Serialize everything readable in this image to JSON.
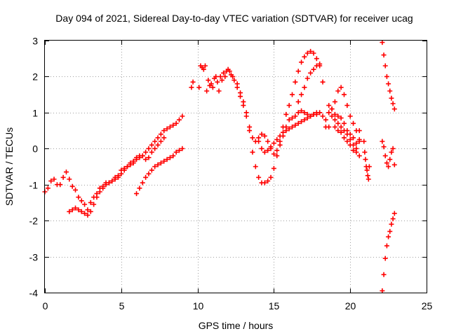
{
  "chart_data": {
    "type": "scatter",
    "title": "Day 094 of 2021, Sidereal Day-to-day VTEC variation (SDTVAR) for receiver ucag",
    "xlabel": "GPS time / hours",
    "ylabel": "SDTVAR / TECUs",
    "xlim": [
      0,
      25
    ],
    "ylim": [
      -4,
      3
    ],
    "x_ticks": [
      "0",
      "5",
      "10",
      "15",
      "20",
      "25"
    ],
    "y_ticks": [
      "-4",
      "-3",
      "-2",
      "-1",
      "0",
      "1",
      "2",
      "3"
    ],
    "grid": true,
    "legend": "none",
    "marker": "+",
    "color": "#ff0000",
    "series": [
      {
        "x": [
          0.0,
          0.2,
          0.4,
          0.6,
          0.8,
          1.0,
          1.2,
          1.4,
          1.6,
          1.8,
          2.0,
          2.2,
          2.4,
          2.6,
          2.8,
          3.0,
          3.2,
          3.4,
          3.6,
          3.8,
          4.0,
          4.2,
          4.4,
          4.6,
          4.8,
          5.0,
          5.2,
          5.4,
          5.6,
          5.8,
          6.0,
          6.2,
          6.4,
          6.6,
          6.8,
          7.0,
          7.2,
          7.4,
          7.6,
          7.8,
          8.0,
          8.2,
          8.4,
          8.6,
          8.8,
          9.0
        ],
        "y": [
          -1.2,
          -1.1,
          -0.9,
          -0.85,
          -1.0,
          -1.0,
          -0.8,
          -0.65,
          -0.85,
          -1.05,
          -1.15,
          -1.35,
          -1.45,
          -1.55,
          -1.7,
          -1.5,
          -1.35,
          -1.25,
          -1.1,
          -1.05,
          -0.95,
          -0.95,
          -0.9,
          -0.8,
          -0.75,
          -0.6,
          -0.55,
          -0.5,
          -0.45,
          -0.4,
          -0.3,
          -0.25,
          -0.2,
          -0.1,
          0.0,
          0.1,
          0.2,
          0.3,
          0.4,
          0.5,
          0.55,
          0.6,
          0.65,
          0.7,
          0.8,
          0.9
        ]
      },
      {
        "x": [
          1.6,
          1.8,
          2.0,
          2.2,
          2.4,
          2.6,
          2.8,
          3.0,
          3.2,
          3.4,
          3.6,
          3.8,
          4.0,
          4.2,
          4.4,
          4.6,
          4.8,
          5.0,
          5.2,
          5.4,
          5.6,
          5.8,
          6.0,
          6.2,
          6.4,
          6.6,
          6.8,
          7.0,
          7.2,
          7.4,
          7.6,
          7.8
        ],
        "y": [
          -1.75,
          -1.7,
          -1.65,
          -1.7,
          -1.75,
          -1.8,
          -1.85,
          -1.75,
          -1.55,
          -1.35,
          -1.2,
          -1.1,
          -1.0,
          -0.95,
          -0.9,
          -0.85,
          -0.8,
          -0.7,
          -0.6,
          -0.5,
          -0.4,
          -0.35,
          -0.25,
          -0.2,
          -0.2,
          -0.3,
          -0.25,
          -0.1,
          0.0,
          0.1,
          0.2,
          0.3
        ]
      },
      {
        "x": [
          6.0,
          6.2,
          6.4,
          6.6,
          6.8,
          7.0,
          7.2,
          7.4,
          7.6,
          7.8,
          8.0,
          8.2,
          8.4,
          8.6,
          8.8,
          9.0
        ],
        "y": [
          -1.25,
          -1.1,
          -0.95,
          -0.8,
          -0.7,
          -0.6,
          -0.5,
          -0.45,
          -0.4,
          -0.35,
          -0.3,
          -0.25,
          -0.2,
          -0.1,
          -0.05,
          0.0
        ]
      },
      {
        "x": [
          9.6,
          9.7,
          10.1,
          10.2,
          10.3,
          10.4,
          10.5,
          10.6,
          10.7,
          10.8,
          10.9,
          11.0,
          11.1,
          11.2,
          11.3,
          11.4,
          11.5,
          11.6,
          11.7,
          11.8,
          11.9,
          12.0,
          12.1,
          12.2,
          12.3
        ],
        "y": [
          1.7,
          1.85,
          1.7,
          2.3,
          2.25,
          2.2,
          2.3,
          1.6,
          1.9,
          1.75,
          1.8,
          1.7,
          1.95,
          2.0,
          1.85,
          1.6,
          2.0,
          1.9,
          2.1,
          2.0,
          2.15,
          2.2,
          2.15,
          2.05,
          2.0
        ]
      },
      {
        "x": [
          12.4,
          12.6,
          12.8,
          13.0,
          13.2,
          13.4,
          13.6,
          13.8,
          14.0,
          14.2,
          14.4,
          14.6,
          14.8,
          15.0,
          15.2,
          15.4,
          15.6,
          15.8,
          16.0,
          16.2,
          16.4,
          16.6,
          16.8,
          17.0,
          17.2,
          17.4,
          17.6,
          17.8,
          18.0,
          18.2
        ],
        "y": [
          1.9,
          1.7,
          1.45,
          1.2,
          0.9,
          0.5,
          -0.1,
          -0.5,
          -0.8,
          -0.95,
          -0.95,
          -0.9,
          -0.8,
          -0.55,
          -0.2,
          0.2,
          0.6,
          0.95,
          1.2,
          1.5,
          1.85,
          2.15,
          2.4,
          2.55,
          2.65,
          2.7,
          2.65,
          2.5,
          2.3,
          1.85
        ]
      },
      {
        "x": [
          12.6,
          12.8,
          13.0,
          13.2,
          13.4,
          13.6,
          13.8,
          14.0,
          14.2,
          14.4,
          14.6,
          14.8,
          15.0,
          15.2,
          15.4,
          15.6,
          15.8,
          16.0,
          16.2,
          16.4,
          16.6,
          16.8,
          17.0,
          17.2,
          17.4,
          17.6,
          17.8,
          18.0,
          18.2,
          18.4,
          18.6
        ],
        "y": [
          1.8,
          1.55,
          1.3,
          1.0,
          0.6,
          0.3,
          0.2,
          0.3,
          0.4,
          0.35,
          0.2,
          0.0,
          -0.15,
          -0.05,
          0.1,
          0.35,
          0.6,
          0.8,
          0.85,
          0.9,
          1.0,
          1.05,
          1.0,
          0.95,
          0.9,
          0.95,
          1.0,
          1.0,
          0.9,
          0.6,
          0.6
        ]
      },
      {
        "x": [
          14.0,
          14.2,
          14.4,
          14.6,
          14.8,
          15.0,
          15.2,
          15.4,
          15.6,
          15.8,
          16.0,
          16.2,
          16.4,
          16.6,
          16.8,
          17.0,
          17.2,
          17.4,
          17.6,
          17.8,
          18.0
        ],
        "y": [
          0.2,
          0.0,
          -0.1,
          -0.05,
          0.05,
          0.15,
          0.25,
          0.35,
          0.45,
          0.5,
          0.55,
          0.6,
          0.65,
          0.7,
          0.75,
          0.8,
          0.85,
          0.9,
          0.95,
          0.95,
          1.0
        ]
      },
      {
        "x": [
          16.6,
          16.8,
          17.0,
          17.2,
          17.4,
          17.6,
          17.8,
          18.0
        ],
        "y": [
          1.3,
          1.5,
          1.7,
          1.95,
          2.1,
          2.2,
          2.3,
          2.35
        ]
      },
      {
        "x": [
          18.4,
          18.6,
          18.8,
          19.0,
          19.2,
          19.4,
          19.6,
          19.8,
          20.0,
          20.2,
          20.4,
          20.6
        ],
        "y": [
          0.8,
          1.0,
          1.1,
          1.3,
          1.6,
          1.7,
          1.5,
          1.2,
          0.9,
          0.7,
          0.5,
          0.2
        ]
      },
      {
        "x": [
          18.6,
          18.8,
          19.0,
          19.2,
          19.4,
          19.6,
          19.8,
          20.0,
          20.2,
          20.4,
          20.6
        ],
        "y": [
          1.2,
          1.1,
          0.95,
          0.9,
          0.85,
          0.7,
          0.5,
          0.4,
          0.3,
          0.0,
          0.5
        ]
      },
      {
        "x": [
          18.6,
          18.8,
          19.0,
          19.2,
          19.4,
          19.6,
          19.8,
          20.0,
          20.2,
          20.4,
          20.6
        ],
        "y": [
          1.0,
          0.9,
          0.8,
          0.7,
          0.6,
          0.5,
          0.4,
          0.25,
          0.1,
          0.15,
          0.25
        ]
      },
      {
        "x": [
          19.0,
          19.2,
          19.4,
          19.6,
          19.8,
          20.0,
          20.2,
          20.4,
          20.6
        ],
        "y": [
          0.6,
          0.5,
          0.45,
          0.3,
          0.2,
          0.1,
          -0.05,
          -0.1,
          -0.2
        ]
      },
      {
        "x": [
          20.9,
          20.95,
          21.0,
          21.05,
          21.1,
          21.15,
          21.2,
          21.25
        ],
        "y": [
          0.2,
          -0.1,
          -0.3,
          -0.5,
          -0.6,
          -0.75,
          -0.85,
          -0.5
        ]
      },
      {
        "x": [
          22.1,
          22.2,
          22.3,
          22.4,
          22.5,
          22.6,
          22.7,
          22.8,
          22.9
        ],
        "y": [
          2.95,
          2.6,
          2.3,
          2.0,
          1.8,
          1.6,
          1.4,
          1.25,
          1.1
        ]
      },
      {
        "x": [
          22.1,
          22.2,
          22.3,
          22.4,
          22.5,
          22.6,
          22.7,
          22.8,
          22.9
        ],
        "y": [
          0.2,
          0.05,
          -0.2,
          -0.4,
          -0.5,
          -0.3,
          -0.1,
          0.0,
          -0.45
        ]
      },
      {
        "x": [
          22.1,
          22.2,
          22.3,
          22.4,
          22.5,
          22.6,
          22.7,
          22.8,
          22.9
        ],
        "y": [
          -3.95,
          -3.5,
          -3.05,
          -2.7,
          -2.45,
          -2.3,
          -2.1,
          -1.95,
          -1.8
        ]
      }
    ]
  }
}
